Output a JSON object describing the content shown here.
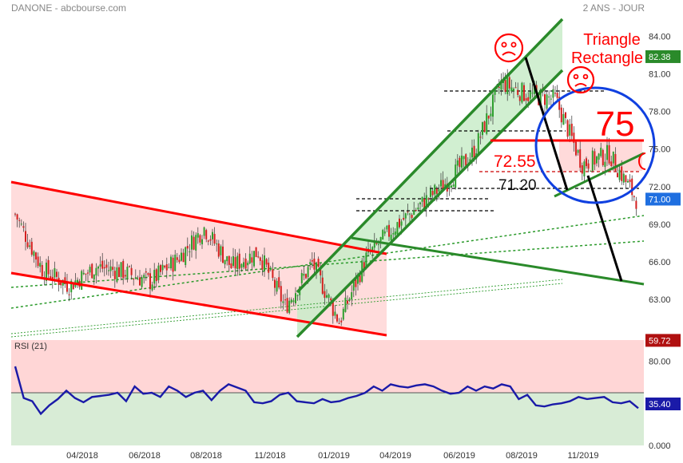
{
  "header": {
    "title": "DANONE - abcbourse.com",
    "period": "2 ANS - JOUR"
  },
  "colors": {
    "candle_up": "#2e9e2e",
    "candle_down": "#d42020",
    "channel_red": "#ff0000",
    "channel_green": "#2a8a2a",
    "rsi_line": "#1a1aa8",
    "ellipse": "#1040e0",
    "price_badge_green": "#2a8a2a",
    "price_badge_blue": "#1f6fe0",
    "price_badge_red": "#b01010"
  },
  "chart_data": [
    {
      "type": "candlestick",
      "title": "",
      "ylim": [
        60,
        85.5
      ],
      "y_ticks": [
        "84.00",
        "81.00",
        "78.00",
        "75.00",
        "72.00",
        "69.00",
        "66.00",
        "63.00",
        "60.00"
      ],
      "x_ticks": [
        "04/2018",
        "06/2018",
        "08/2018",
        "11/2018",
        "01/2019",
        "04/2019",
        "06/2019",
        "08/2019",
        "11/2019"
      ],
      "price_badges": [
        {
          "label": "82.38",
          "value": 82.38,
          "color": "#2a8a2a"
        },
        {
          "label": "71.00",
          "value": 71.0,
          "color": "#1f6fe0"
        },
        {
          "label": "59.72",
          "value": 59.72,
          "color": "#b01010"
        }
      ],
      "annotations": {
        "triangle_label": [
          "Triangle",
          "Rectangle"
        ],
        "big_target": "75",
        "level_1": "72.55",
        "level_2": "71.20"
      },
      "price_path": [
        {
          "date": "2018-01",
          "close": 69.8
        },
        {
          "date": "2018-02",
          "close": 65.4
        },
        {
          "date": "2018-03",
          "close": 64.1
        },
        {
          "date": "2018-04",
          "close": 65.6
        },
        {
          "date": "2018-05",
          "close": 65.2
        },
        {
          "date": "2018-06",
          "close": 64.4
        },
        {
          "date": "2018-07",
          "close": 66.2
        },
        {
          "date": "2018-08",
          "close": 68.7
        },
        {
          "date": "2018-09",
          "close": 65.6
        },
        {
          "date": "2018-10",
          "close": 66.8
        },
        {
          "date": "2018-11",
          "close": 62.4
        },
        {
          "date": "2018-12",
          "close": 65.9
        },
        {
          "date": "2019-01",
          "close": 61.2
        },
        {
          "date": "2019-02",
          "close": 66.3
        },
        {
          "date": "2019-03",
          "close": 68.7
        },
        {
          "date": "2019-04",
          "close": 70.5
        },
        {
          "date": "2019-05",
          "close": 72.4
        },
        {
          "date": "2019-06",
          "close": 74.8
        },
        {
          "date": "2019-07",
          "close": 80.3
        },
        {
          "date": "2019-08",
          "close": 79.3
        },
        {
          "date": "2019-09",
          "close": 79.0
        },
        {
          "date": "2019-10",
          "close": 73.8
        },
        {
          "date": "2019-11",
          "close": 74.6
        },
        {
          "date": "2019-12",
          "close": 71.0
        }
      ]
    },
    {
      "type": "line",
      "title": "RSI (21)",
      "ylim": [
        0,
        100
      ],
      "y_ticks": [
        "80.00",
        "0.000"
      ],
      "last_value_label": "35.40",
      "series": [
        {
          "name": "RSI (21)",
          "values": [
            75,
            45,
            42,
            30,
            38,
            44,
            52,
            45,
            41,
            46,
            47,
            48,
            50,
            42,
            56,
            49,
            50,
            46,
            56,
            52,
            46,
            50,
            52,
            43,
            52,
            58,
            55,
            52,
            41,
            40,
            42,
            48,
            50,
            42,
            41,
            40,
            44,
            41,
            42,
            45,
            47,
            50,
            56,
            52,
            58,
            56,
            55,
            57,
            58,
            56,
            52,
            49,
            50,
            56,
            52,
            56,
            54,
            58,
            56,
            44,
            48,
            38,
            37,
            39,
            40,
            42,
            46,
            44,
            45,
            46,
            41,
            40,
            42,
            35.4
          ]
        }
      ]
    }
  ]
}
